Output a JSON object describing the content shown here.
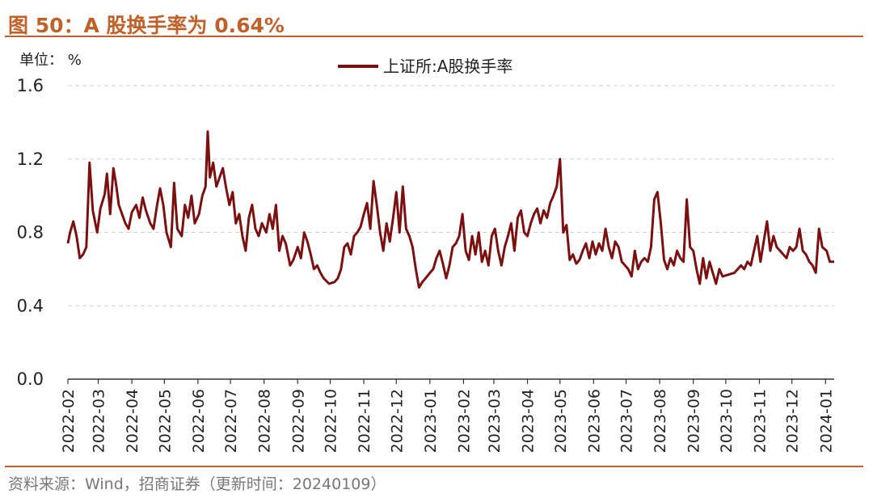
{
  "header": {
    "title": "图 50：A 股换手率为 0.64%"
  },
  "unit_label": "单位： %",
  "footer": {
    "source": "资料来源：Wind，招商证券（更新时间：20240109）"
  },
  "colors": {
    "accent": "#c0612b",
    "series": "#7b1010",
    "grid": "#d0d0d0"
  },
  "chart_data": {
    "type": "line",
    "ylim": [
      0.0,
      1.6
    ],
    "yticks": [
      "0.0",
      "0.4",
      "0.8",
      "1.2",
      "1.6"
    ],
    "xlim": [
      "2022-02-01",
      "2024-01-09"
    ],
    "xticks": [
      "2022-02",
      "2022-03",
      "2022-04",
      "2022-05",
      "2022-06",
      "2022-07",
      "2022-08",
      "2022-09",
      "2022-10",
      "2022-11",
      "2022-12",
      "2023-01",
      "2023-02",
      "2023-03",
      "2023-04",
      "2023-05",
      "2023-06",
      "2023-07",
      "2023-08",
      "2023-09",
      "2023-10",
      "2023-11",
      "2023-12",
      "2024-01"
    ],
    "grid": "horizontal-dashed",
    "legend_position": "top-center",
    "series": [
      {
        "name": "上证所:A股换手率",
        "points": [
          [
            "2022-02-01",
            0.74
          ],
          [
            "2022-02-03",
            0.8
          ],
          [
            "2022-02-06",
            0.86
          ],
          [
            "2022-02-09",
            0.78
          ],
          [
            "2022-02-12",
            0.66
          ],
          [
            "2022-02-15",
            0.68
          ],
          [
            "2022-02-18",
            0.72
          ],
          [
            "2022-02-21",
            1.18
          ],
          [
            "2022-02-24",
            0.92
          ],
          [
            "2022-02-28",
            0.8
          ],
          [
            "2022-03-03",
            0.93
          ],
          [
            "2022-03-07",
            1.01
          ],
          [
            "2022-03-09",
            1.12
          ],
          [
            "2022-03-12",
            0.9
          ],
          [
            "2022-03-15",
            1.15
          ],
          [
            "2022-03-17",
            1.08
          ],
          [
            "2022-03-20",
            0.95
          ],
          [
            "2022-03-23",
            0.9
          ],
          [
            "2022-03-26",
            0.85
          ],
          [
            "2022-03-29",
            0.82
          ],
          [
            "2022-04-01",
            0.91
          ],
          [
            "2022-04-05",
            0.95
          ],
          [
            "2022-04-08",
            0.88
          ],
          [
            "2022-04-11",
            0.99
          ],
          [
            "2022-04-14",
            0.92
          ],
          [
            "2022-04-18",
            0.85
          ],
          [
            "2022-04-21",
            0.82
          ],
          [
            "2022-04-24",
            0.94
          ],
          [
            "2022-04-27",
            1.04
          ],
          [
            "2022-04-30",
            0.95
          ],
          [
            "2022-05-03",
            0.8
          ],
          [
            "2022-05-07",
            0.72
          ],
          [
            "2022-05-10",
            1.07
          ],
          [
            "2022-05-13",
            0.82
          ],
          [
            "2022-05-17",
            0.78
          ],
          [
            "2022-05-20",
            0.95
          ],
          [
            "2022-05-23",
            0.88
          ],
          [
            "2022-05-26",
            1.0
          ],
          [
            "2022-05-29",
            0.85
          ],
          [
            "2022-06-02",
            0.9
          ],
          [
            "2022-06-05",
            1.0
          ],
          [
            "2022-06-08",
            1.05
          ],
          [
            "2022-06-10",
            1.35
          ],
          [
            "2022-06-12",
            1.1
          ],
          [
            "2022-06-15",
            1.18
          ],
          [
            "2022-06-18",
            1.05
          ],
          [
            "2022-06-21",
            1.1
          ],
          [
            "2022-06-24",
            1.15
          ],
          [
            "2022-06-27",
            1.04
          ],
          [
            "2022-06-30",
            0.95
          ],
          [
            "2022-07-03",
            1.02
          ],
          [
            "2022-07-06",
            0.85
          ],
          [
            "2022-07-09",
            0.9
          ],
          [
            "2022-07-12",
            0.78
          ],
          [
            "2022-07-15",
            0.7
          ],
          [
            "2022-07-18",
            0.88
          ],
          [
            "2022-07-21",
            0.95
          ],
          [
            "2022-07-24",
            0.82
          ],
          [
            "2022-07-27",
            0.78
          ],
          [
            "2022-07-30",
            0.85
          ],
          [
            "2022-08-03",
            0.8
          ],
          [
            "2022-08-06",
            0.9
          ],
          [
            "2022-08-09",
            0.82
          ],
          [
            "2022-08-12",
            0.95
          ],
          [
            "2022-08-15",
            0.7
          ],
          [
            "2022-08-18",
            0.78
          ],
          [
            "2022-08-21",
            0.74
          ],
          [
            "2022-08-25",
            0.62
          ],
          [
            "2022-08-28",
            0.65
          ],
          [
            "2022-09-01",
            0.72
          ],
          [
            "2022-09-04",
            0.66
          ],
          [
            "2022-09-07",
            0.8
          ],
          [
            "2022-09-10",
            0.75
          ],
          [
            "2022-09-13",
            0.68
          ],
          [
            "2022-09-16",
            0.6
          ],
          [
            "2022-09-19",
            0.62
          ],
          [
            "2022-09-22",
            0.58
          ],
          [
            "2022-09-25",
            0.55
          ],
          [
            "2022-09-30",
            0.52
          ],
          [
            "2022-10-05",
            0.53
          ],
          [
            "2022-10-08",
            0.55
          ],
          [
            "2022-10-11",
            0.6
          ],
          [
            "2022-10-14",
            0.72
          ],
          [
            "2022-10-17",
            0.74
          ],
          [
            "2022-10-20",
            0.68
          ],
          [
            "2022-10-23",
            0.78
          ],
          [
            "2022-10-26",
            0.8
          ],
          [
            "2022-10-29",
            0.83
          ],
          [
            "2022-11-01",
            0.9
          ],
          [
            "2022-11-04",
            0.96
          ],
          [
            "2022-11-07",
            0.82
          ],
          [
            "2022-11-10",
            1.08
          ],
          [
            "2022-11-13",
            0.95
          ],
          [
            "2022-11-16",
            0.8
          ],
          [
            "2022-11-19",
            0.7
          ],
          [
            "2022-11-22",
            0.85
          ],
          [
            "2022-11-25",
            0.75
          ],
          [
            "2022-11-28",
            0.88
          ],
          [
            "2022-12-01",
            1.02
          ],
          [
            "2022-12-04",
            0.8
          ],
          [
            "2022-12-07",
            1.05
          ],
          [
            "2022-12-10",
            0.82
          ],
          [
            "2022-12-13",
            0.78
          ],
          [
            "2022-12-16",
            0.72
          ],
          [
            "2022-12-19",
            0.6
          ],
          [
            "2022-12-22",
            0.5
          ],
          [
            "2022-12-25",
            0.53
          ],
          [
            "2022-12-28",
            0.55
          ],
          [
            "2023-01-01",
            0.58
          ],
          [
            "2023-01-04",
            0.6
          ],
          [
            "2023-01-07",
            0.66
          ],
          [
            "2023-01-10",
            0.7
          ],
          [
            "2023-01-13",
            0.63
          ],
          [
            "2023-01-16",
            0.55
          ],
          [
            "2023-01-19",
            0.62
          ],
          [
            "2023-01-22",
            0.72
          ],
          [
            "2023-01-25",
            0.74
          ],
          [
            "2023-01-28",
            0.78
          ],
          [
            "2023-01-31",
            0.9
          ],
          [
            "2023-02-03",
            0.7
          ],
          [
            "2023-02-06",
            0.65
          ],
          [
            "2023-02-09",
            0.78
          ],
          [
            "2023-02-12",
            0.68
          ],
          [
            "2023-02-15",
            0.8
          ],
          [
            "2023-02-18",
            0.64
          ],
          [
            "2023-02-21",
            0.7
          ],
          [
            "2023-02-24",
            0.62
          ],
          [
            "2023-02-27",
            0.78
          ],
          [
            "2023-03-02",
            0.82
          ],
          [
            "2023-03-05",
            0.7
          ],
          [
            "2023-03-08",
            0.62
          ],
          [
            "2023-03-11",
            0.72
          ],
          [
            "2023-03-14",
            0.78
          ],
          [
            "2023-03-17",
            0.85
          ],
          [
            "2023-03-20",
            0.7
          ],
          [
            "2023-03-23",
            0.88
          ],
          [
            "2023-03-26",
            0.92
          ],
          [
            "2023-03-29",
            0.8
          ],
          [
            "2023-04-01",
            0.78
          ],
          [
            "2023-04-04",
            0.85
          ],
          [
            "2023-04-07",
            0.9
          ],
          [
            "2023-04-10",
            0.93
          ],
          [
            "2023-04-13",
            0.85
          ],
          [
            "2023-04-16",
            0.92
          ],
          [
            "2023-04-19",
            0.88
          ],
          [
            "2023-04-22",
            0.96
          ],
          [
            "2023-04-25",
            1.0
          ],
          [
            "2023-04-28",
            1.05
          ],
          [
            "2023-05-01",
            1.2
          ],
          [
            "2023-05-04",
            0.8
          ],
          [
            "2023-05-07",
            0.84
          ],
          [
            "2023-05-10",
            0.65
          ],
          [
            "2023-05-13",
            0.68
          ],
          [
            "2023-05-16",
            0.63
          ],
          [
            "2023-05-19",
            0.65
          ],
          [
            "2023-05-22",
            0.7
          ],
          [
            "2023-05-25",
            0.74
          ],
          [
            "2023-05-28",
            0.66
          ],
          [
            "2023-05-31",
            0.75
          ],
          [
            "2023-06-03",
            0.68
          ],
          [
            "2023-06-06",
            0.74
          ],
          [
            "2023-06-09",
            0.7
          ],
          [
            "2023-06-12",
            0.82
          ],
          [
            "2023-06-15",
            0.72
          ],
          [
            "2023-06-18",
            0.66
          ],
          [
            "2023-06-21",
            0.75
          ],
          [
            "2023-06-24",
            0.72
          ],
          [
            "2023-06-27",
            0.64
          ],
          [
            "2023-06-30",
            0.62
          ],
          [
            "2023-07-03",
            0.6
          ],
          [
            "2023-07-06",
            0.56
          ],
          [
            "2023-07-09",
            0.7
          ],
          [
            "2023-07-12",
            0.6
          ],
          [
            "2023-07-15",
            0.64
          ],
          [
            "2023-07-18",
            0.66
          ],
          [
            "2023-07-21",
            0.64
          ],
          [
            "2023-07-24",
            0.72
          ],
          [
            "2023-07-27",
            0.98
          ],
          [
            "2023-07-30",
            1.02
          ],
          [
            "2023-08-02",
            0.85
          ],
          [
            "2023-08-05",
            0.65
          ],
          [
            "2023-08-08",
            0.6
          ],
          [
            "2023-08-11",
            0.66
          ],
          [
            "2023-08-14",
            0.62
          ],
          [
            "2023-08-17",
            0.7
          ],
          [
            "2023-08-20",
            0.66
          ],
          [
            "2023-08-23",
            0.64
          ],
          [
            "2023-08-26",
            0.98
          ],
          [
            "2023-08-29",
            0.72
          ],
          [
            "2023-09-01",
            0.7
          ],
          [
            "2023-09-04",
            0.6
          ],
          [
            "2023-09-07",
            0.52
          ],
          [
            "2023-09-10",
            0.66
          ],
          [
            "2023-09-13",
            0.55
          ],
          [
            "2023-09-16",
            0.64
          ],
          [
            "2023-09-19",
            0.58
          ],
          [
            "2023-09-22",
            0.52
          ],
          [
            "2023-09-25",
            0.6
          ],
          [
            "2023-09-28",
            0.56
          ],
          [
            "2023-10-09",
            0.58
          ],
          [
            "2023-10-12",
            0.6
          ],
          [
            "2023-10-15",
            0.62
          ],
          [
            "2023-10-18",
            0.6
          ],
          [
            "2023-10-21",
            0.64
          ],
          [
            "2023-10-24",
            0.62
          ],
          [
            "2023-10-27",
            0.7
          ],
          [
            "2023-10-30",
            0.78
          ],
          [
            "2023-11-02",
            0.64
          ],
          [
            "2023-11-05",
            0.75
          ],
          [
            "2023-11-08",
            0.86
          ],
          [
            "2023-11-11",
            0.7
          ],
          [
            "2023-11-14",
            0.78
          ],
          [
            "2023-11-17",
            0.72
          ],
          [
            "2023-11-20",
            0.7
          ],
          [
            "2023-11-23",
            0.68
          ],
          [
            "2023-11-26",
            0.66
          ],
          [
            "2023-11-29",
            0.72
          ],
          [
            "2023-12-02",
            0.7
          ],
          [
            "2023-12-05",
            0.72
          ],
          [
            "2023-12-08",
            0.82
          ],
          [
            "2023-12-11",
            0.7
          ],
          [
            "2023-12-14",
            0.68
          ],
          [
            "2023-12-17",
            0.64
          ],
          [
            "2023-12-20",
            0.62
          ],
          [
            "2023-12-23",
            0.58
          ],
          [
            "2023-12-26",
            0.82
          ],
          [
            "2023-12-29",
            0.72
          ],
          [
            "2024-01-02",
            0.7
          ],
          [
            "2024-01-05",
            0.64
          ],
          [
            "2024-01-09",
            0.64
          ]
        ]
      }
    ]
  }
}
